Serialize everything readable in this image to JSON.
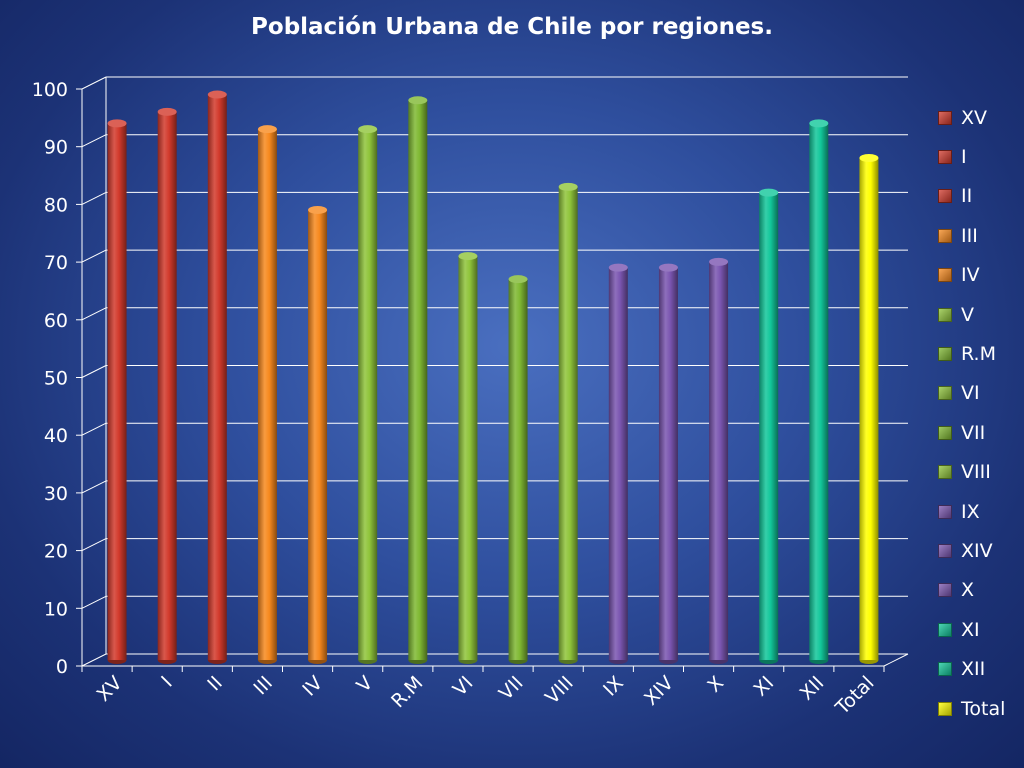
{
  "chart_data": {
    "type": "bar",
    "title": "Población Urbana de Chile por regiones.",
    "xlabel": "",
    "ylabel": "",
    "ylim": [
      0,
      100
    ],
    "yticks": [
      0,
      10,
      20,
      30,
      40,
      50,
      60,
      70,
      80,
      90,
      100
    ],
    "grid": true,
    "legend_position": "right",
    "categories": [
      "XV",
      "I",
      "II",
      "III",
      "IV",
      "V",
      "R.M",
      "VI",
      "VII",
      "VIII",
      "IX",
      "XIV",
      "X",
      "XI",
      "XII",
      "Total"
    ],
    "values": [
      93,
      95,
      98,
      92,
      78,
      92,
      97,
      70,
      66,
      82,
      68,
      68,
      69,
      81,
      93,
      87
    ],
    "colors": [
      "#d23a2c",
      "#d23a2c",
      "#d23a2c",
      "#f7891e",
      "#f7891e",
      "#8fc43a",
      "#7fb832",
      "#8fc43a",
      "#7fb832",
      "#8fc43a",
      "#7a55b0",
      "#7a55b0",
      "#7a55b0",
      "#12c79a",
      "#12c79a",
      "#ffff00"
    ]
  }
}
